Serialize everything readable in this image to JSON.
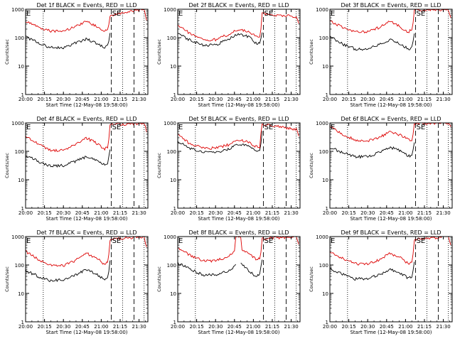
{
  "page": {
    "background": "#ffffff",
    "event_color": "#000000",
    "lld_color": "#dd0000"
  },
  "chart_data": [
    {
      "type": "line",
      "detector": "1f",
      "title": "Det 1f BLACK = Events, RED = LLD",
      "xlabel": "Start Time (12-May-08 19:58:00)",
      "ylabel": "Counts/sec",
      "xlim": [
        "20:00",
        "21:37"
      ],
      "ylim": [
        1,
        1000
      ],
      "yscale": "log",
      "xticks": [
        "20:00",
        "20:15",
        "20:30",
        "20:45",
        "21:00",
        "21:15",
        "21:30"
      ],
      "yticks": [
        "1",
        "10",
        "100",
        "1000"
      ],
      "markers": {
        "dotted": [
          "20:14",
          "21:17",
          "21:34"
        ],
        "dashed": [
          "21:08",
          "21:26"
        ],
        "labels": [
          {
            "time": "20:00",
            "text": "E"
          },
          {
            "time": "21:08",
            "text": "SE"
          }
        ]
      },
      "series": [
        {
          "name": "Events",
          "color": "#000000",
          "x": [
            "20:00",
            "20:10",
            "20:20",
            "20:30",
            "20:40",
            "20:48",
            "20:56",
            "21:02",
            "21:05",
            "21:06",
            "21:07"
          ],
          "values": [
            110,
            65,
            45,
            45,
            65,
            90,
            65,
            45,
            55,
            80,
            140
          ]
        },
        {
          "name": "LLD",
          "color": "#dd0000",
          "x": [
            "20:00",
            "20:10",
            "20:20",
            "20:30",
            "20:40",
            "20:48",
            "20:56",
            "21:02",
            "21:05",
            "21:06",
            "21:07",
            "21:34",
            "21:36"
          ],
          "values": [
            380,
            240,
            170,
            170,
            250,
            370,
            250,
            170,
            200,
            300,
            600,
            1000,
            400
          ]
        }
      ]
    },
    {
      "type": "line",
      "detector": "2f",
      "title": "Det 2f BLACK = Events, RED = LLD",
      "xlabel": "Start Time (12-May-08 19:58:00)",
      "ylabel": "Counts/sec",
      "xlim": [
        "20:00",
        "21:37"
      ],
      "ylim": [
        1,
        1000
      ],
      "yscale": "log",
      "xticks": [
        "20:00",
        "20:15",
        "20:30",
        "20:45",
        "21:00",
        "21:15",
        "21:30"
      ],
      "yticks": [
        "1",
        "10",
        "100",
        "1000"
      ],
      "markers": {
        "dotted": [
          "20:14",
          "21:17",
          "21:34"
        ],
        "dashed": [
          "21:08",
          "21:26"
        ],
        "labels": [
          {
            "time": "20:00",
            "text": "E"
          },
          {
            "time": "21:08",
            "text": "SE"
          }
        ]
      },
      "series": [
        {
          "name": "Events",
          "color": "#000000",
          "x": [
            "20:00",
            "20:10",
            "20:20",
            "20:30",
            "20:40",
            "20:48",
            "20:56",
            "21:02",
            "21:05",
            "21:06",
            "21:07"
          ],
          "values": [
            140,
            80,
            55,
            55,
            90,
            140,
            110,
            65,
            60,
            90,
            160
          ]
        },
        {
          "name": "LLD",
          "color": "#dd0000",
          "x": [
            "20:00",
            "20:10",
            "20:20",
            "20:30",
            "20:40",
            "20:48",
            "20:56",
            "21:02",
            "21:05",
            "21:06",
            "21:07",
            "21:34",
            "21:36"
          ],
          "values": [
            260,
            140,
            85,
            85,
            130,
            200,
            170,
            110,
            100,
            180,
            700,
            550,
            300
          ]
        }
      ]
    },
    {
      "type": "line",
      "detector": "3f",
      "title": "Det 3f BLACK = Events, RED = LLD",
      "xlabel": "Start Time (12-May-08 19:58:00)",
      "ylabel": "Counts/sec",
      "xlim": [
        "20:00",
        "21:37"
      ],
      "ylim": [
        1,
        1000
      ],
      "yscale": "log",
      "xticks": [
        "20:00",
        "20:15",
        "20:30",
        "20:45",
        "21:00",
        "21:15",
        "21:30"
      ],
      "yticks": [
        "1",
        "10",
        "100",
        "1000"
      ],
      "markers": {
        "dotted": [
          "20:14",
          "21:17",
          "21:34"
        ],
        "dashed": [
          "21:08",
          "21:26"
        ],
        "labels": [
          {
            "time": "20:00",
            "text": "E"
          },
          {
            "time": "21:08",
            "text": "SE"
          }
        ]
      },
      "series": [
        {
          "name": "Events",
          "color": "#000000",
          "x": [
            "20:00",
            "20:10",
            "20:20",
            "20:30",
            "20:40",
            "20:48",
            "20:56",
            "21:02",
            "21:05",
            "21:06",
            "21:07"
          ],
          "values": [
            110,
            60,
            40,
            40,
            60,
            85,
            60,
            40,
            45,
            70,
            140
          ]
        },
        {
          "name": "LLD",
          "color": "#dd0000",
          "x": [
            "20:00",
            "20:10",
            "20:20",
            "20:30",
            "20:40",
            "20:48",
            "20:56",
            "21:02",
            "21:05",
            "21:06",
            "21:07",
            "21:34",
            "21:36"
          ],
          "values": [
            400,
            230,
            160,
            160,
            240,
            380,
            240,
            160,
            190,
            300,
            900,
            1000,
            450
          ]
        }
      ]
    },
    {
      "type": "line",
      "detector": "4f",
      "title": "Det 4f BLACK = Events, RED = LLD",
      "xlabel": "Start Time (12-May-08 19:58:00)",
      "ylabel": "Counts/sec",
      "xlim": [
        "20:00",
        "21:37"
      ],
      "ylim": [
        1,
        1000
      ],
      "yscale": "log",
      "xticks": [
        "20:00",
        "20:15",
        "20:30",
        "20:45",
        "21:00",
        "21:15",
        "21:30"
      ],
      "yticks": [
        "1",
        "10",
        "100",
        "1000"
      ],
      "markers": {
        "dotted": [
          "20:14",
          "21:17",
          "21:34"
        ],
        "dashed": [
          "21:08",
          "21:26"
        ],
        "labels": [
          {
            "time": "20:00",
            "text": "E"
          },
          {
            "time": "21:08",
            "text": "SE"
          }
        ]
      },
      "series": [
        {
          "name": "Events",
          "color": "#000000",
          "x": [
            "20:00",
            "20:10",
            "20:20",
            "20:30",
            "20:40",
            "20:48",
            "20:56",
            "21:02",
            "21:05",
            "21:06",
            "21:07"
          ],
          "values": [
            70,
            45,
            30,
            32,
            45,
            65,
            50,
            35,
            38,
            60,
            120
          ]
        },
        {
          "name": "LLD",
          "color": "#dd0000",
          "x": [
            "20:00",
            "20:10",
            "20:20",
            "20:30",
            "20:40",
            "20:48",
            "20:56",
            "21:02",
            "21:05",
            "21:06",
            "21:07",
            "21:34",
            "21:36"
          ],
          "values": [
            350,
            180,
            110,
            110,
            180,
            300,
            200,
            120,
            140,
            250,
            850,
            1000,
            500
          ]
        }
      ]
    },
    {
      "type": "line",
      "detector": "5f",
      "title": "Det 5f BLACK = Events, RED = LLD",
      "xlabel": "Start Time (12-May-08 19:58:00)",
      "ylabel": "Counts/sec",
      "xlim": [
        "20:00",
        "21:37"
      ],
      "ylim": [
        1,
        1000
      ],
      "yscale": "log",
      "xticks": [
        "20:00",
        "20:15",
        "20:30",
        "20:45",
        "21:00",
        "21:15",
        "21:30"
      ],
      "yticks": [
        "1",
        "10",
        "100",
        "1000"
      ],
      "markers": {
        "dotted": [
          "20:14",
          "21:17",
          "21:34"
        ],
        "dashed": [
          "21:08",
          "21:26"
        ],
        "labels": [
          {
            "time": "20:00",
            "text": "E"
          },
          {
            "time": "21:08",
            "text": "SE"
          }
        ]
      },
      "series": [
        {
          "name": "Events",
          "color": "#000000",
          "x": [
            "20:00",
            "20:10",
            "20:20",
            "20:30",
            "20:40",
            "20:48",
            "20:56",
            "21:02",
            "21:05",
            "21:06",
            "21:07"
          ],
          "values": [
            220,
            130,
            90,
            90,
            120,
            180,
            150,
            110,
            100,
            200,
            500
          ]
        },
        {
          "name": "LLD",
          "color": "#dd0000",
          "x": [
            "20:00",
            "20:10",
            "20:20",
            "20:30",
            "20:40",
            "20:48",
            "20:56",
            "21:02",
            "21:05",
            "21:06",
            "21:07",
            "21:34",
            "21:36"
          ],
          "values": [
            400,
            180,
            130,
            130,
            170,
            250,
            210,
            150,
            140,
            400,
            900,
            600,
            350
          ]
        }
      ]
    },
    {
      "type": "line",
      "detector": "6f",
      "title": "Det 6f BLACK = Events, RED = LLD",
      "xlabel": "Start Time (12-May-08 19:58:00)",
      "ylabel": "Counts/sec",
      "xlim": [
        "20:00",
        "21:37"
      ],
      "ylim": [
        1,
        1000
      ],
      "yscale": "log",
      "xticks": [
        "20:00",
        "20:15",
        "20:30",
        "20:45",
        "21:00",
        "21:15",
        "21:30"
      ],
      "yticks": [
        "1",
        "10",
        "100",
        "1000"
      ],
      "markers": {
        "dotted": [
          "20:14",
          "21:17",
          "21:34"
        ],
        "dashed": [
          "21:08",
          "21:26"
        ],
        "labels": [
          {
            "time": "20:00",
            "text": "E"
          },
          {
            "time": "21:08",
            "text": "SE"
          }
        ]
      },
      "series": [
        {
          "name": "Events",
          "color": "#000000",
          "x": [
            "20:00",
            "20:10",
            "20:20",
            "20:30",
            "20:40",
            "20:48",
            "20:56",
            "21:02",
            "21:05",
            "21:06",
            "21:07"
          ],
          "values": [
            140,
            90,
            65,
            65,
            95,
            140,
            105,
            70,
            65,
            110,
            200
          ]
        },
        {
          "name": "LLD",
          "color": "#dd0000",
          "x": [
            "20:00",
            "20:10",
            "20:20",
            "20:30",
            "20:40",
            "20:48",
            "20:56",
            "21:02",
            "21:05",
            "21:06",
            "21:07",
            "21:34",
            "21:36"
          ],
          "values": [
            750,
            400,
            250,
            240,
            320,
            500,
            380,
            260,
            250,
            400,
            950,
            1000,
            800
          ]
        }
      ]
    },
    {
      "type": "line",
      "detector": "7f",
      "title": "Det 7f BLACK = Events, RED = LLD",
      "xlabel": "Start Time (12-May-08 19:58:00)",
      "ylabel": "Counts/sec",
      "xlim": [
        "20:00",
        "21:37"
      ],
      "ylim": [
        1,
        1000
      ],
      "yscale": "log",
      "xticks": [
        "20:00",
        "20:15",
        "20:30",
        "20:45",
        "21:00",
        "21:15",
        "21:30"
      ],
      "yticks": [
        "1",
        "10",
        "100",
        "1000"
      ],
      "markers": {
        "dotted": [
          "20:14",
          "21:17",
          "21:34"
        ],
        "dashed": [
          "21:08",
          "21:26"
        ],
        "labels": [
          {
            "time": "20:00",
            "text": "E"
          },
          {
            "time": "21:08",
            "text": "SE"
          }
        ]
      },
      "series": [
        {
          "name": "Events",
          "color": "#000000",
          "x": [
            "20:00",
            "20:10",
            "20:20",
            "20:30",
            "20:40",
            "20:48",
            "20:56",
            "21:02",
            "21:05",
            "21:06",
            "21:07"
          ],
          "values": [
            65,
            40,
            28,
            30,
            45,
            70,
            50,
            32,
            35,
            60,
            130
          ]
        },
        {
          "name": "LLD",
          "color": "#dd0000",
          "x": [
            "20:00",
            "20:10",
            "20:20",
            "20:30",
            "20:40",
            "20:48",
            "20:56",
            "21:02",
            "21:05",
            "21:06",
            "21:07",
            "21:34",
            "21:36"
          ],
          "values": [
            300,
            160,
            95,
            95,
            150,
            260,
            180,
            110,
            120,
            220,
            800,
            1000,
            400
          ]
        }
      ]
    },
    {
      "type": "line",
      "detector": "8f",
      "title": "Det 8f BLACK = Events, RED = LLD",
      "xlabel": "Start Time (12-May-08 19:58:00)",
      "ylabel": "Counts/sec",
      "xlim": [
        "20:00",
        "21:37"
      ],
      "ylim": [
        1,
        1000
      ],
      "yscale": "log",
      "xticks": [
        "20:00",
        "20:15",
        "20:30",
        "20:45",
        "21:00",
        "21:15",
        "21:30"
      ],
      "yticks": [
        "1",
        "10",
        "100",
        "1000"
      ],
      "markers": {
        "dotted": [
          "20:14",
          "21:17",
          "21:34"
        ],
        "dashed": [
          "21:08",
          "21:26"
        ],
        "labels": [
          {
            "time": "20:00",
            "text": "E"
          },
          {
            "time": "21:08",
            "text": "SE"
          }
        ]
      },
      "series": [
        {
          "name": "Events",
          "color": "#000000",
          "x": [
            "20:00",
            "20:10",
            "20:20",
            "20:30",
            "20:40",
            "20:46",
            "20:47",
            "20:50",
            "20:54",
            "20:58",
            "21:02",
            "21:05",
            "21:06",
            "21:07"
          ],
          "values": [
            120,
            70,
            45,
            45,
            60,
            100,
            null,
            120,
            80,
            55,
            40,
            45,
            80,
            150
          ]
        },
        {
          "name": "LLD",
          "color": "#dd0000",
          "x": [
            "20:00",
            "20:10",
            "20:20",
            "20:30",
            "20:40",
            "20:45",
            "20:46",
            "20:50",
            "20:51",
            "20:56",
            "21:02",
            "21:05",
            "21:06",
            "21:07",
            "21:34",
            "21:36"
          ],
          "values": [
            400,
            220,
            140,
            140,
            200,
            320,
            1000,
            1000,
            350,
            250,
            160,
            170,
            300,
            850,
            1000,
            500
          ]
        }
      ]
    },
    {
      "type": "line",
      "detector": "9f",
      "title": "Det 9f BLACK = Events, RED = LLD",
      "xlabel": "Start Time (12-May-08 19:58:00)",
      "ylabel": "Counts/sec",
      "xlim": [
        "20:00",
        "21:37"
      ],
      "ylim": [
        1,
        1000
      ],
      "yscale": "log",
      "xticks": [
        "20:00",
        "20:15",
        "20:30",
        "20:45",
        "21:00",
        "21:15",
        "21:30"
      ],
      "yticks": [
        "1",
        "10",
        "100",
        "1000"
      ],
      "markers": {
        "dotted": [
          "20:14",
          "21:17",
          "21:34"
        ],
        "dashed": [
          "21:08",
          "21:26"
        ],
        "labels": [
          {
            "time": "20:00",
            "text": "E"
          },
          {
            "time": "21:08",
            "text": "SE"
          }
        ]
      },
      "series": [
        {
          "name": "Events",
          "color": "#000000",
          "x": [
            "20:00",
            "20:10",
            "20:20",
            "20:30",
            "20:40",
            "20:48",
            "20:56",
            "21:02",
            "21:05",
            "21:06",
            "21:07"
          ],
          "values": [
            75,
            48,
            32,
            34,
            48,
            70,
            52,
            35,
            38,
            60,
            120
          ]
        },
        {
          "name": "LLD",
          "color": "#dd0000",
          "x": [
            "20:00",
            "20:10",
            "20:20",
            "20:30",
            "20:40",
            "20:48",
            "20:56",
            "21:02",
            "21:05",
            "21:06",
            "21:07",
            "21:34",
            "21:36"
          ],
          "values": [
            300,
            170,
            110,
            110,
            160,
            260,
            180,
            115,
            125,
            230,
            800,
            1000,
            450
          ]
        }
      ]
    }
  ]
}
